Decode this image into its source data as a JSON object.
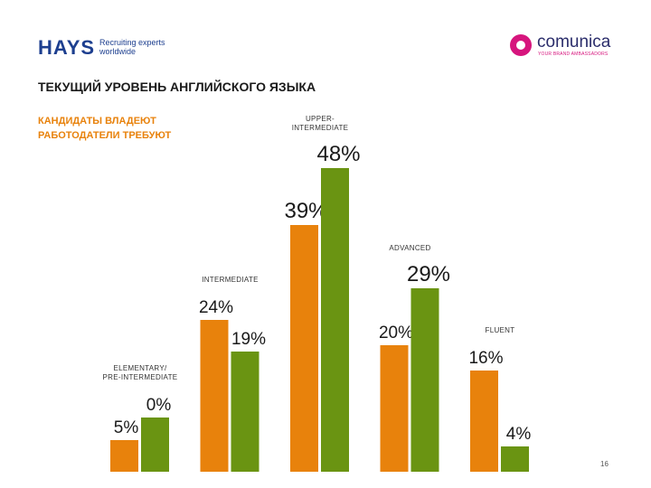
{
  "header": {
    "hays_logo": "HAYS",
    "hays_tagline_1": "Recruiting experts",
    "hays_tagline_2": "worldwide",
    "comunica_logo": "comunica",
    "comunica_tagline": "YOUR BRAND AMBASSADORS"
  },
  "slide": {
    "title": "ТЕКУЩИЙ УРОВЕНЬ АНГЛИЙСКОГО ЯЗЫКА",
    "page_number": "16"
  },
  "colors": {
    "orange": "#e8820c",
    "green": "#6a9412"
  },
  "chart_data": {
    "type": "bar",
    "title": "ТЕКУЩИЙ УРОВЕНЬ АНГЛИЙСКОГО ЯЗЫКА",
    "categories": [
      [
        "ELEMENTARY/",
        "PRE-INTERMEDIATE"
      ],
      [
        "INTERMEDIATE"
      ],
      [
        "UPPER-",
        "INTERMEDIATE"
      ],
      [
        "ADVANCED"
      ],
      [
        "FLUENT"
      ]
    ],
    "series": [
      {
        "name": "КАНДИДАТЫ ВЛАДЕЮТ",
        "color": "#e8820c",
        "values": [
          5,
          24,
          39,
          20,
          16
        ],
        "labels": [
          "5%",
          "24%",
          "39%",
          "20%",
          "16%"
        ]
      },
      {
        "name": "РАБОТОДАТЕЛИ ТРЕБУЮТ",
        "color": "#6a9412",
        "values": [
          0,
          19,
          48,
          29,
          4
        ],
        "labels": [
          "0%",
          "19%",
          "48%",
          "29%",
          "4%"
        ]
      }
    ],
    "ylim": [
      0,
      50
    ],
    "grid": false,
    "legend_position": "top-left"
  }
}
